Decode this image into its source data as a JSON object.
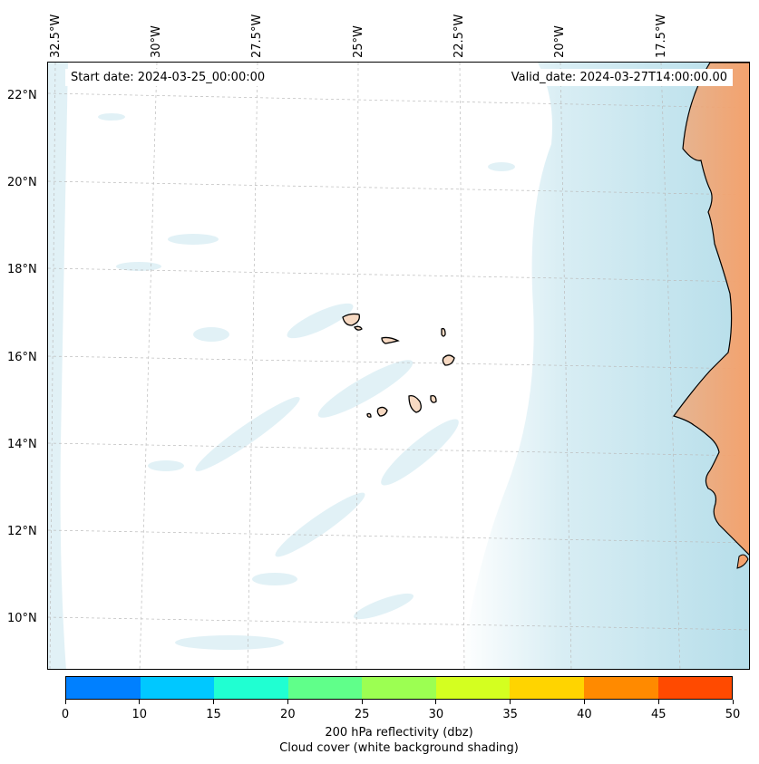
{
  "map": {
    "start_date": "Start date: 2024-03-25_00:00:00",
    "valid_date": "Valid_date: 2024-03-27T14:00:00.00",
    "lon_labels": [
      "32.5°W",
      "30°W",
      "27.5°W",
      "25°W",
      "22.5°W",
      "20°W",
      "17.5°W"
    ],
    "lat_labels": [
      "22°N",
      "20°N",
      "18°N",
      "16°N",
      "14°N",
      "12°N",
      "10°N"
    ],
    "cloud_color": "#a9d8e6",
    "land_color": "#f4a26d"
  },
  "colorbar": {
    "ticks": [
      "0",
      "10",
      "15",
      "20",
      "25",
      "30",
      "35",
      "40",
      "45",
      "50"
    ],
    "colors": [
      "#0080ff",
      "#00c8ff",
      "#20ffd2",
      "#60ff8a",
      "#9cff52",
      "#d4ff20",
      "#ffd400",
      "#ff8a00",
      "#ff4a00"
    ],
    "label_line1": "200 hPa reflectivity (dbz)",
    "label_line2": "Cloud cover (white background shading)"
  }
}
